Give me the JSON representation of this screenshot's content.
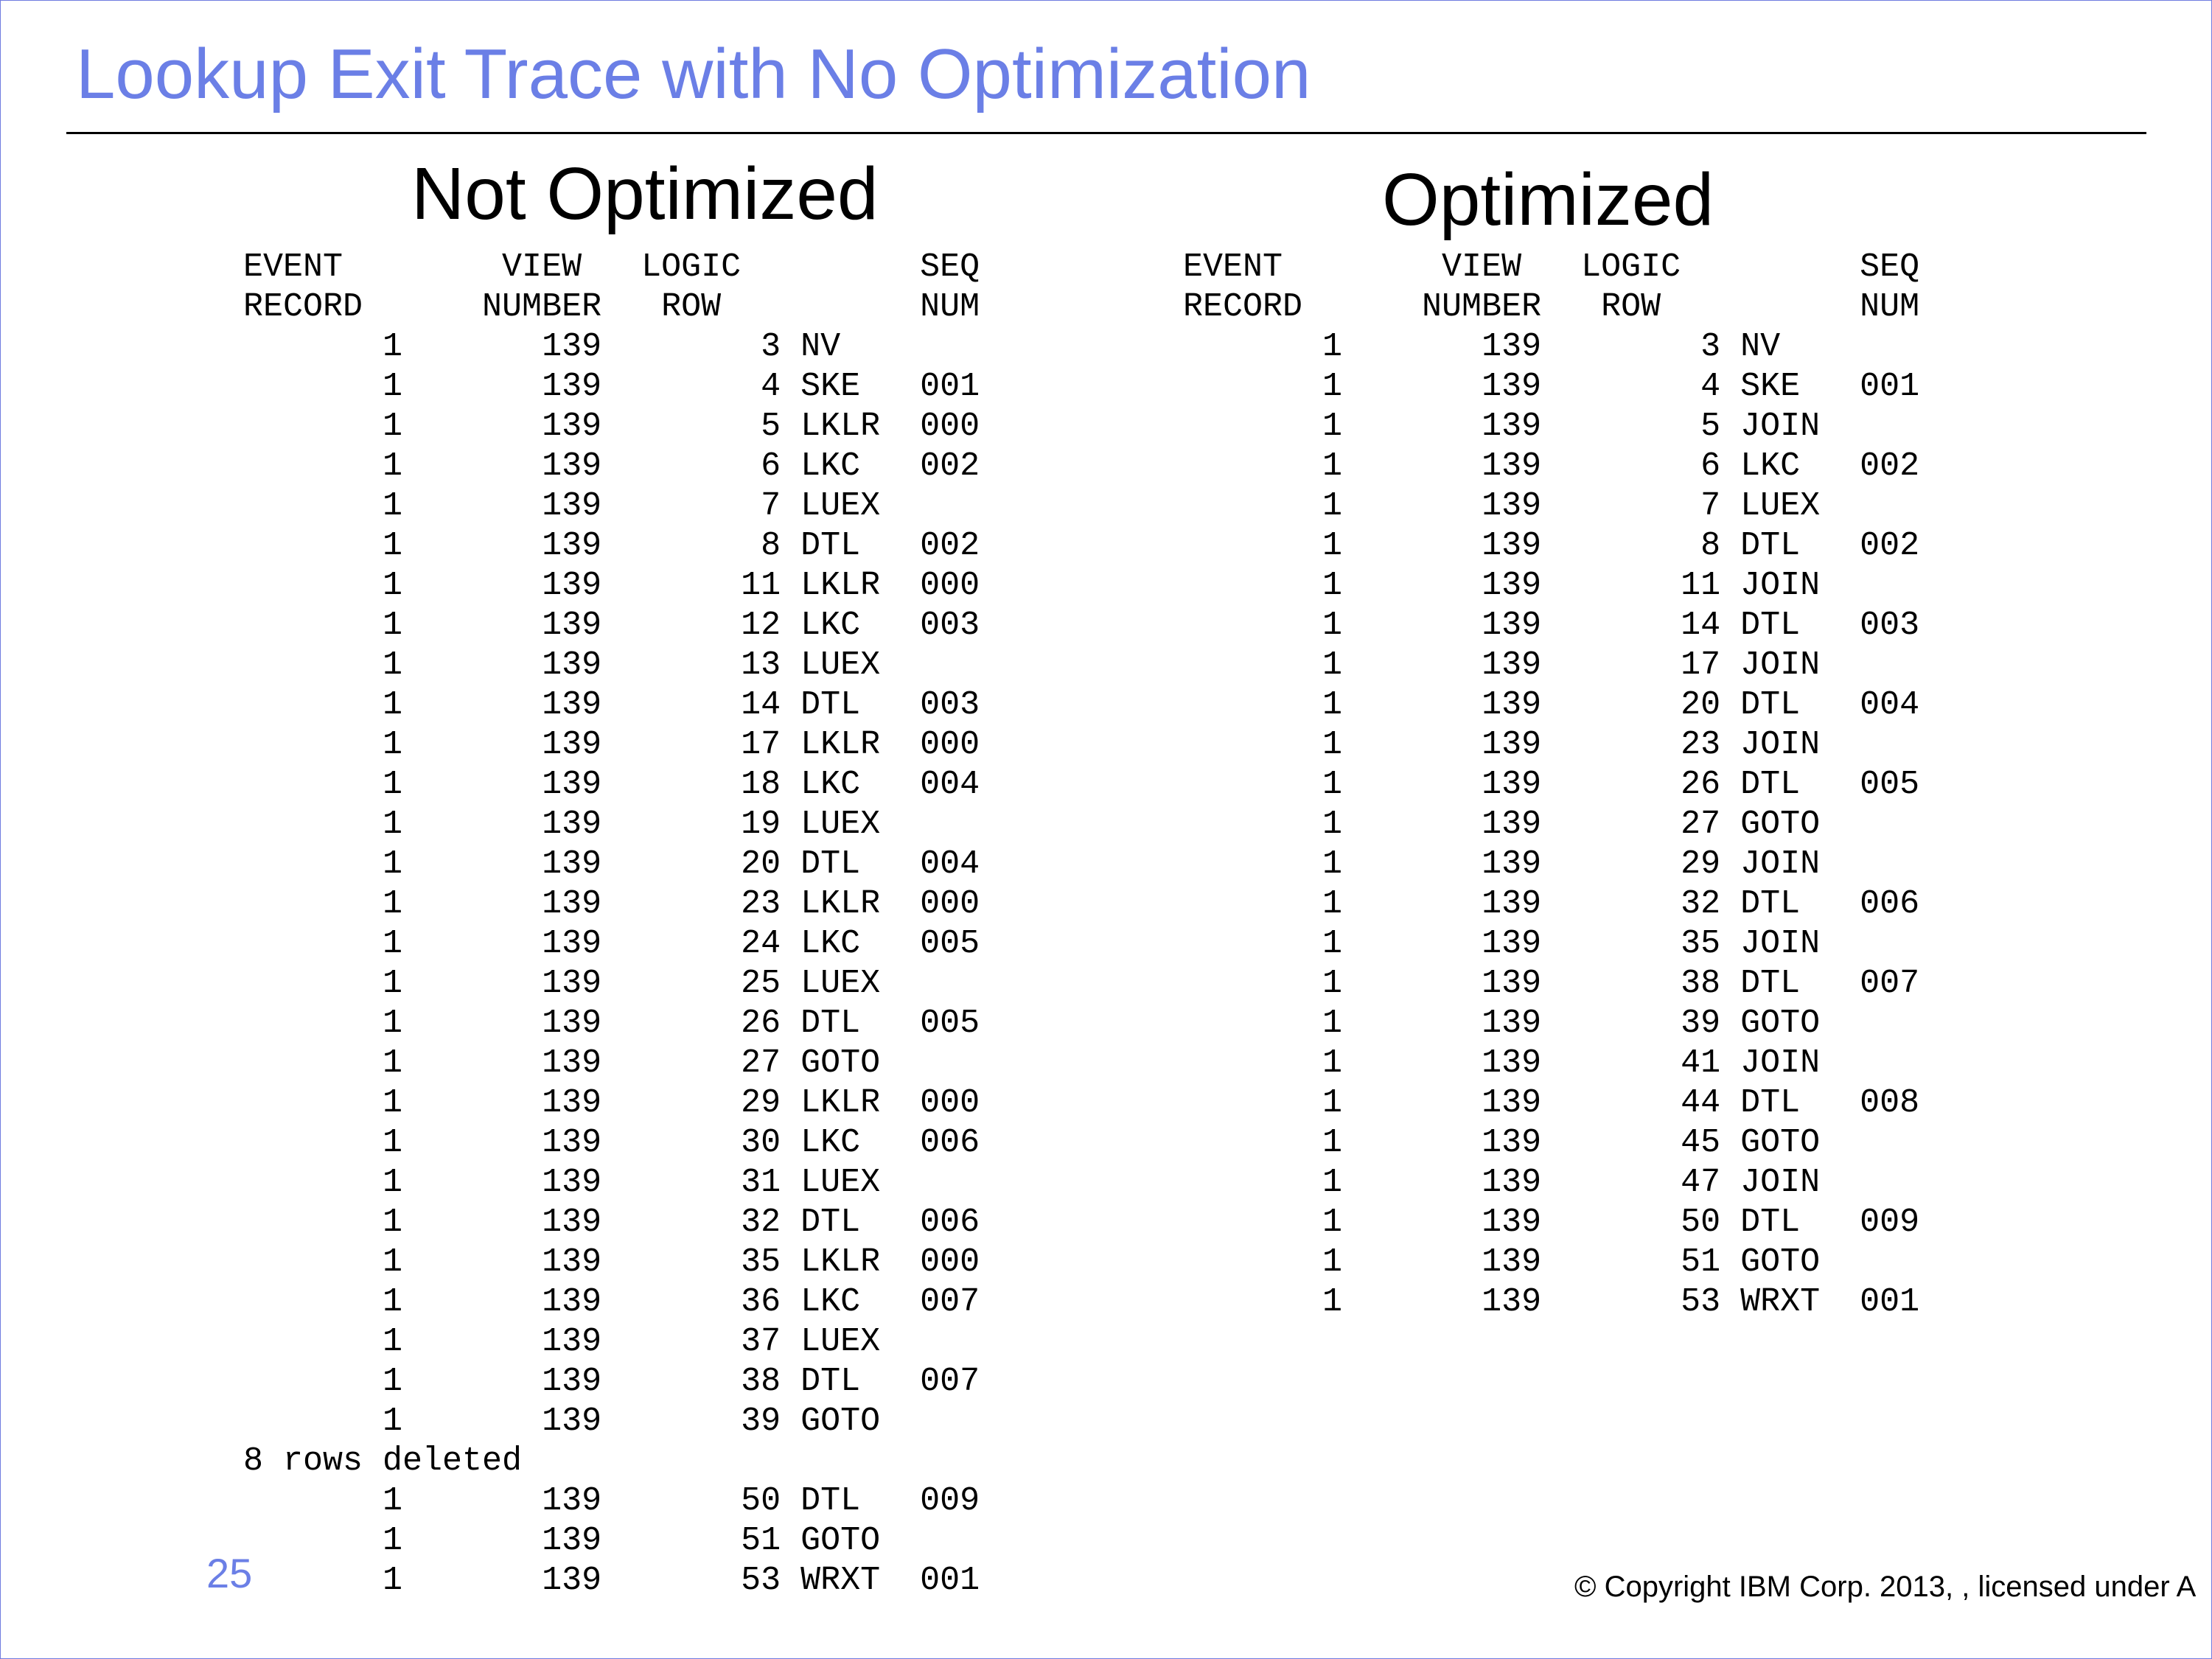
{
  "slide": {
    "title": "Lookup Exit Trace with No Optimization",
    "page_number": "25",
    "copyright": "© Copyright IBM Corp. 2013, , licensed under A",
    "colors": {
      "title": "#6b7fe6",
      "rule": "#000000",
      "border": "#6f7be0"
    }
  },
  "left": {
    "heading": "Not Optimized",
    "trace": "EVENT        VIEW   LOGIC         SEQ\nRECORD      NUMBER   ROW          NUM\n       1       139        3 NV\n       1       139        4 SKE   001\n       1       139        5 LKLR  000\n       1       139        6 LKC   002\n       1       139        7 LUEX\n       1       139        8 DTL   002\n       1       139       11 LKLR  000\n       1       139       12 LKC   003\n       1       139       13 LUEX\n       1       139       14 DTL   003\n       1       139       17 LKLR  000\n       1       139       18 LKC   004\n       1       139       19 LUEX\n       1       139       20 DTL   004\n       1       139       23 LKLR  000\n       1       139       24 LKC   005\n       1       139       25 LUEX\n       1       139       26 DTL   005\n       1       139       27 GOTO\n       1       139       29 LKLR  000\n       1       139       30 LKC   006\n       1       139       31 LUEX\n       1       139       32 DTL   006\n       1       139       35 LKLR  000\n       1       139       36 LKC   007\n       1       139       37 LUEX\n       1       139       38 DTL   007\n       1       139       39 GOTO\n8 rows deleted\n       1       139       50 DTL   009\n       1       139       51 GOTO\n       1       139       53 WRXT  001"
  },
  "right": {
    "heading": "Optimized",
    "trace": "EVENT        VIEW   LOGIC         SEQ\nRECORD      NUMBER   ROW          NUM\n       1       139        3 NV\n       1       139        4 SKE   001\n       1       139        5 JOIN\n       1       139        6 LKC   002\n       1       139        7 LUEX\n       1       139        8 DTL   002\n       1       139       11 JOIN\n       1       139       14 DTL   003\n       1       139       17 JOIN\n       1       139       20 DTL   004\n       1       139       23 JOIN\n       1       139       26 DTL   005\n       1       139       27 GOTO\n       1       139       29 JOIN\n       1       139       32 DTL   006\n       1       139       35 JOIN\n       1       139       38 DTL   007\n       1       139       39 GOTO\n       1       139       41 JOIN\n       1       139       44 DTL   008\n       1       139       45 GOTO\n       1       139       47 JOIN\n       1       139       50 DTL   009\n       1       139       51 GOTO\n       1       139       53 WRXT  001"
  }
}
